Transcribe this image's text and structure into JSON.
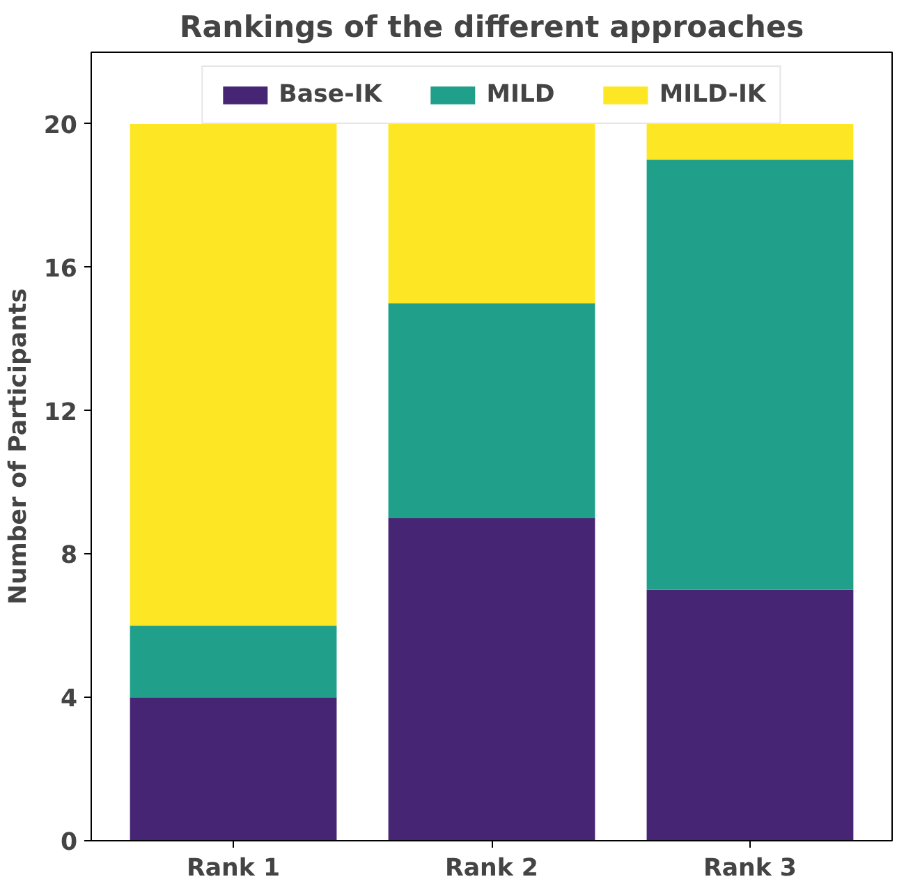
{
  "chart_data": {
    "type": "bar",
    "title": "Rankings of the different approaches",
    "ylabel": "Number of Participants",
    "categories": [
      "Rank 1",
      "Rank 2",
      "Rank 3"
    ],
    "stacked": true,
    "series": [
      {
        "name": "Base-IK",
        "color": "#472575",
        "values": [
          4,
          9,
          7
        ]
      },
      {
        "name": "MILD",
        "color": "#20a08a",
        "values": [
          2,
          6,
          12
        ]
      },
      {
        "name": "MILD-IK",
        "color": "#fde725",
        "values": [
          14,
          5,
          1
        ]
      }
    ],
    "ylim": [
      0,
      22
    ],
    "yticks": [
      0,
      4,
      8,
      12,
      16,
      20
    ],
    "grid": false,
    "legend": "top"
  }
}
